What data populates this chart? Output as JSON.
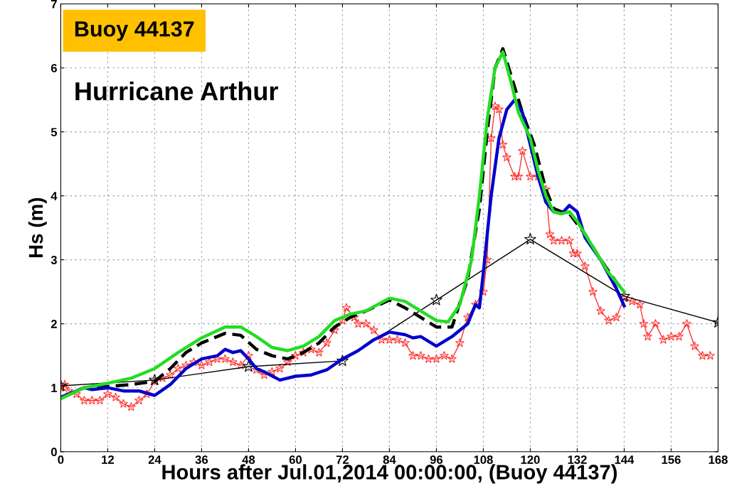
{
  "chart_data": {
    "type": "line",
    "xlabel": "Hours after Jul.01,2014 00:00:00, (Buoy 44137)",
    "ylabel": "Hs (m)",
    "annotations": [
      "Buoy 44137",
      "Hurricane Arthur"
    ],
    "xlim": [
      0,
      168
    ],
    "xticks": [
      0,
      12,
      24,
      36,
      48,
      60,
      72,
      84,
      96,
      108,
      120,
      132,
      144,
      156,
      168
    ],
    "ylim": [
      0,
      7
    ],
    "yticks": [
      0,
      1,
      2,
      3,
      4,
      5,
      6,
      7
    ],
    "grid": true,
    "legend": false,
    "series": [
      {
        "color": "#ff3333",
        "marker": "star",
        "line_style": "solid",
        "x": [
          0,
          1,
          2,
          4,
          6,
          8,
          10,
          12,
          14,
          16,
          18,
          20,
          22,
          24,
          26,
          28,
          30,
          32,
          34,
          36,
          38,
          40,
          42,
          44,
          46,
          48,
          50,
          52,
          54,
          56,
          58,
          60,
          62,
          64,
          66,
          68,
          70,
          72,
          73,
          75,
          76,
          78,
          80,
          82,
          84,
          86,
          88,
          90,
          92,
          94,
          96,
          98,
          100,
          102,
          104,
          106,
          108,
          109,
          110,
          111,
          112,
          113,
          114,
          116,
          117,
          118,
          120,
          122,
          124,
          125,
          126,
          128,
          130,
          131,
          132,
          134,
          136,
          138,
          140,
          142,
          144,
          146,
          148,
          149,
          150,
          152,
          154,
          156,
          158,
          160,
          162,
          164,
          166
        ],
        "values": [
          1.0,
          1.05,
          0.95,
          0.9,
          0.8,
          0.8,
          0.8,
          0.9,
          0.85,
          0.75,
          0.7,
          0.8,
          0.9,
          1.1,
          1.15,
          1.2,
          1.3,
          1.35,
          1.4,
          1.35,
          1.4,
          1.45,
          1.45,
          1.4,
          1.35,
          1.5,
          1.28,
          1.2,
          1.25,
          1.3,
          1.4,
          1.5,
          1.55,
          1.6,
          1.55,
          1.7,
          1.9,
          2.05,
          2.25,
          2.1,
          2.0,
          2.0,
          1.9,
          1.75,
          1.75,
          1.75,
          1.7,
          1.5,
          1.5,
          1.45,
          1.45,
          1.5,
          1.45,
          1.7,
          2.1,
          2.3,
          2.5,
          3.0,
          4.9,
          5.4,
          5.35,
          4.8,
          4.6,
          4.3,
          4.3,
          4.7,
          4.3,
          4.3,
          4.1,
          3.4,
          3.3,
          3.3,
          3.3,
          3.1,
          3.1,
          2.9,
          2.5,
          2.2,
          2.05,
          2.1,
          2.4,
          2.35,
          2.3,
          2.0,
          1.8,
          2.0,
          1.75,
          1.8,
          1.8,
          2.0,
          1.65,
          1.5,
          1.5
        ]
      },
      {
        "color": "#000000",
        "marker": "star",
        "line_style": "solid",
        "x": [
          0,
          24,
          48,
          72,
          96,
          120,
          144,
          168
        ],
        "values": [
          1.03,
          1.12,
          1.33,
          1.42,
          2.37,
          3.32,
          2.43,
          2.02
        ]
      },
      {
        "color": "#000000",
        "marker": "none",
        "line_style": "dashed",
        "x": [
          0,
          6,
          12,
          18,
          24,
          28,
          32,
          36,
          42,
          46,
          50,
          54,
          58,
          62,
          66,
          70,
          74,
          78,
          84,
          88,
          92,
          96,
          100,
          104,
          107,
          109,
          111,
          113,
          115,
          118,
          121,
          124,
          126,
          128,
          130,
          134,
          138,
          142,
          144
        ],
        "values": [
          0.85,
          1.0,
          1.02,
          1.05,
          1.1,
          1.3,
          1.55,
          1.7,
          1.85,
          1.82,
          1.6,
          1.5,
          1.45,
          1.55,
          1.7,
          1.95,
          2.1,
          2.2,
          2.37,
          2.25,
          2.1,
          1.95,
          1.95,
          2.7,
          3.8,
          5.0,
          6.0,
          6.3,
          5.9,
          5.3,
          4.8,
          4.1,
          3.8,
          3.75,
          3.72,
          3.4,
          3.0,
          2.65,
          2.5
        ]
      },
      {
        "color": "#0000cc",
        "marker": "none",
        "line_style": "solid",
        "x": [
          0,
          4,
          6,
          8,
          12,
          16,
          20,
          24,
          28,
          32,
          36,
          40,
          42,
          44,
          46,
          48,
          50,
          52,
          56,
          60,
          64,
          68,
          72,
          76,
          80,
          84,
          88,
          90,
          92,
          96,
          100,
          104,
          106,
          107,
          108,
          110,
          112,
          114,
          116,
          118,
          120,
          122,
          124,
          126,
          128,
          130,
          132,
          134,
          138,
          142,
          144
        ],
        "values": [
          0.85,
          0.95,
          1.0,
          0.97,
          1.0,
          0.95,
          0.95,
          0.88,
          1.05,
          1.3,
          1.45,
          1.5,
          1.6,
          1.55,
          1.58,
          1.45,
          1.3,
          1.25,
          1.12,
          1.18,
          1.2,
          1.28,
          1.45,
          1.58,
          1.75,
          1.87,
          1.83,
          1.78,
          1.8,
          1.65,
          1.8,
          2.0,
          2.3,
          2.25,
          2.8,
          4.0,
          4.9,
          5.35,
          5.5,
          5.3,
          4.8,
          4.3,
          3.9,
          3.75,
          3.72,
          3.85,
          3.75,
          3.35,
          3.0,
          2.55,
          2.28
        ]
      },
      {
        "color": "#22dd22",
        "marker": "none",
        "line_style": "solid",
        "x": [
          0,
          6,
          12,
          18,
          24,
          30,
          36,
          42,
          46,
          50,
          54,
          58,
          62,
          66,
          70,
          74,
          78,
          84,
          88,
          92,
          96,
          99,
          102,
          105,
          107,
          109,
          111,
          113,
          115,
          117,
          120,
          122,
          124,
          126,
          128,
          130,
          132,
          136,
          140,
          144
        ],
        "values": [
          0.83,
          1.0,
          1.07,
          1.15,
          1.3,
          1.55,
          1.78,
          1.95,
          1.95,
          1.8,
          1.63,
          1.58,
          1.65,
          1.8,
          2.05,
          2.15,
          2.2,
          2.4,
          2.35,
          2.2,
          2.05,
          2.03,
          2.3,
          3.0,
          4.0,
          5.2,
          6.0,
          6.25,
          5.8,
          5.3,
          4.9,
          4.4,
          4.0,
          3.75,
          3.72,
          3.75,
          3.6,
          3.2,
          2.8,
          2.5
        ]
      }
    ]
  }
}
